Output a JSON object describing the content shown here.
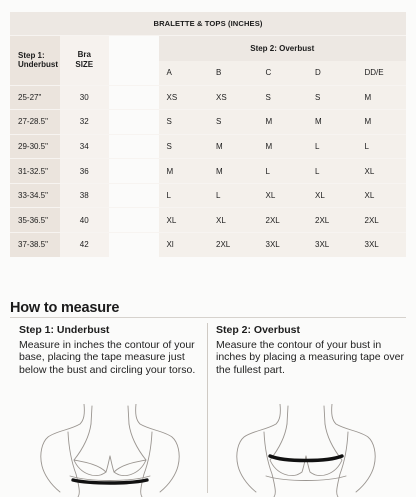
{
  "table": {
    "title": "BRALETTE & TOPS (INCHES)",
    "step1_header": "Step 1: Underbust",
    "bra_size_header_line1": "Bra",
    "bra_size_header_line2": "SIZE",
    "step2_header": "Step 2: Overbust",
    "cup_letters": [
      "A",
      "B",
      "C",
      "D",
      "DD/E"
    ],
    "rows": [
      {
        "underbust": "25-27\"",
        "bra": "30",
        "values": [
          "XS",
          "XS",
          "S",
          "S",
          "M"
        ]
      },
      {
        "underbust": "27-28.5\"",
        "bra": "32",
        "values": [
          "S",
          "S",
          "M",
          "M",
          "M"
        ]
      },
      {
        "underbust": "29-30.5\"",
        "bra": "34",
        "values": [
          "S",
          "M",
          "M",
          "L",
          "L"
        ]
      },
      {
        "underbust": "31-32.5\"",
        "bra": "36",
        "values": [
          "M",
          "M",
          "L",
          "L",
          "XL"
        ]
      },
      {
        "underbust": "33-34.5\"",
        "bra": "38",
        "values": [
          "L",
          "L",
          "XL",
          "XL",
          "XL"
        ]
      },
      {
        "underbust": "35-36.5\"",
        "bra": "40",
        "values": [
          "XL",
          "XL",
          "2XL",
          "2XL",
          "2XL"
        ]
      },
      {
        "underbust": "37-38.5\"",
        "bra": "42",
        "values": [
          "Xl",
          "2XL",
          "3XL",
          "3XL",
          "3XL"
        ]
      }
    ]
  },
  "measure": {
    "title": "How to measure",
    "step1": {
      "title": "Step 1: Underbust",
      "text": "Measure in inches the contour of your base, placing the tape measure just below the bust and circling your torso."
    },
    "step2": {
      "title": "Step 2: Overbust",
      "text": "Measure the contour of your bust in inches by placing a measuring tape over the fullest part."
    }
  },
  "colors": {
    "table_header_bg": "#ede8e3",
    "underbust_col_bg": "#ebe4dd",
    "value_bg": "#f4f0eb",
    "page_bg": "#fbfbfa",
    "tape": "#111111"
  },
  "icons": [
    "underbust-illustration",
    "overbust-illustration"
  ]
}
